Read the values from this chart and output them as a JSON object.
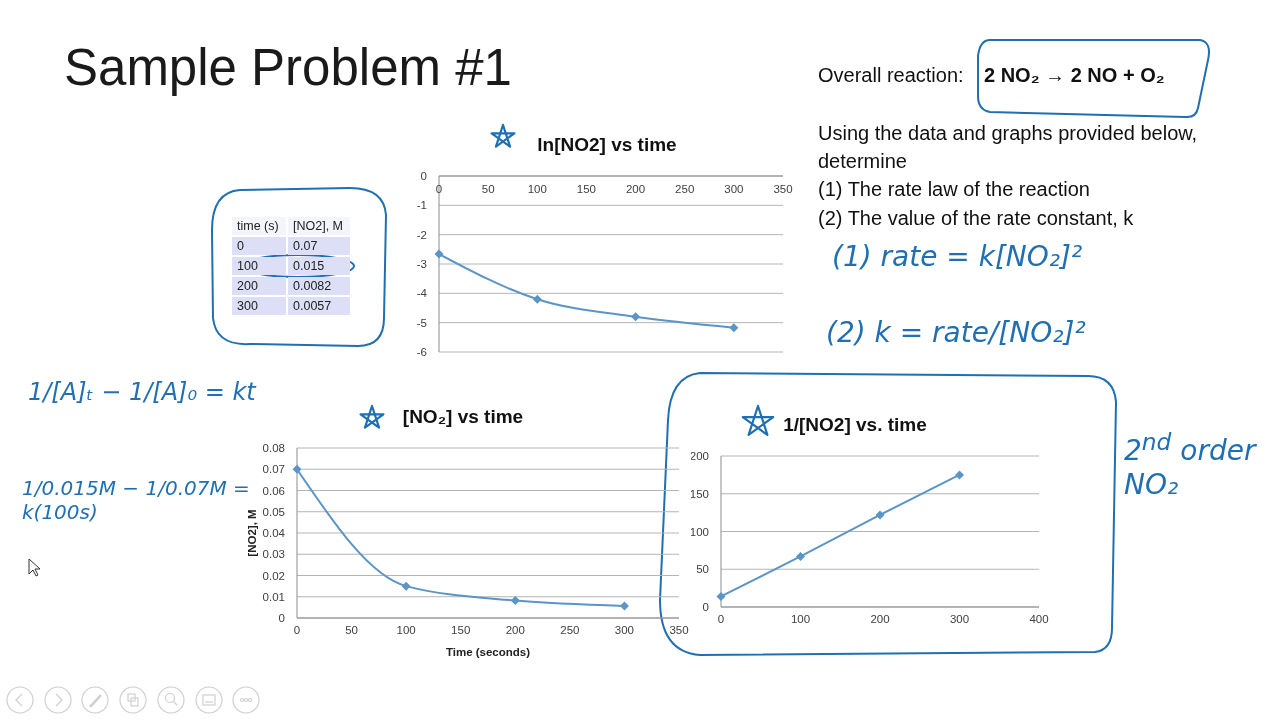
{
  "chart_data": [
    {
      "type": "other",
      "title": "Sample Problem #1",
      "annotations": [
        "Overall reaction:",
        "2 NO₂ → 2 NO + O₂",
        "Using the data and graphs provided below, determine",
        "(1) The rate law of the reaction",
        "(2) The value of the rate constant, k",
        "time (s)\t[NO2], M",
        "0\t0.07",
        "100\t0.015",
        "200\t0.0082",
        "300\t0.0057",
        "(1) rate = k[NO₂]²",
        "(2) k = rate/[NO₂]²",
        "1/[A]ₜ − 1/[A]₀ = kt",
        "1/0.015M − 1/0.07M = k(100s)",
        "2$^{nd}$ order NO₂"
      ]
    },
    {
      "type": "line",
      "title": "ln[NO2] vs time",
      "x": [
        0,
        100,
        200,
        300
      ],
      "values": [
        -2.66,
        -4.2,
        -4.8,
        -5.17
      ],
      "color": "#5b95c6",
      "xlim": [
        0,
        350
      ],
      "xticks": [
        0,
        50,
        100,
        150,
        200,
        250,
        300,
        350
      ],
      "ylim": [
        -6,
        0
      ],
      "yticks": [
        -6,
        -5,
        -4,
        -3,
        -2,
        -1,
        0
      ],
      "grid": "y",
      "marker": "diamond"
    },
    {
      "type": "line",
      "title": "[NO₂] vs time",
      "xlabel": "Time (seconds)",
      "ylabel": "[NO2], M",
      "x": [
        0,
        100,
        200,
        300
      ],
      "values": [
        0.07,
        0.015,
        0.0082,
        0.0057
      ],
      "color": "#5b95c6",
      "xlim": [
        0,
        350
      ],
      "xticks": [
        0,
        50,
        100,
        150,
        200,
        250,
        300,
        350
      ],
      "ylim": [
        0,
        0.08
      ],
      "yticks": [
        0,
        0.01,
        0.02,
        0.03,
        0.04,
        0.05,
        0.06,
        0.07,
        0.08
      ],
      "grid": "y",
      "marker": "diamond"
    },
    {
      "type": "line",
      "title": "1/[NO2] vs. time",
      "x": [
        0,
        100,
        200,
        300
      ],
      "values": [
        14,
        67,
        122,
        175
      ],
      "color": "#5b95c6",
      "xlim": [
        0,
        400
      ],
      "xticks": [
        0,
        100,
        200,
        300,
        400
      ],
      "ylim": [
        0,
        200
      ],
      "yticks": [
        0,
        50,
        100,
        150,
        200
      ],
      "grid": "y",
      "marker": "diamond"
    }
  ]
}
